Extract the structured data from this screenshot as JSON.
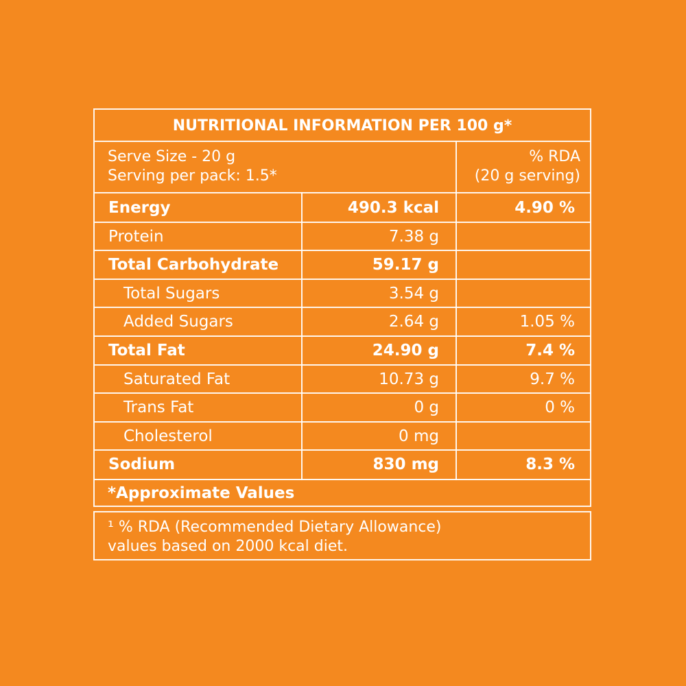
{
  "title": "NUTRITIONAL INFORMATION PER 100 g*",
  "serve_size": "Serve Size - 20 g",
  "servings_per_pack": "Serving per pack: 1.5*",
  "rda_header_line1": "% RDA",
  "rda_header_line2": "(20 g serving)",
  "rows": [
    {
      "name": "Energy",
      "amount": "490.3 kcal",
      "rda": "4.90 %",
      "bold": true,
      "indent": false
    },
    {
      "name": "Protein",
      "amount": "7.38 g",
      "rda": "",
      "bold": false,
      "indent": false
    },
    {
      "name": "Total Carbohydrate",
      "amount": "59.17 g",
      "rda": "",
      "bold": true,
      "indent": false
    },
    {
      "name": "Total Sugars",
      "amount": "3.54 g",
      "rda": "",
      "bold": false,
      "indent": true
    },
    {
      "name": "Added Sugars",
      "amount": "2.64 g",
      "rda": "1.05 %",
      "bold": false,
      "indent": true
    },
    {
      "name": "Total Fat",
      "amount": "24.90 g",
      "rda": "7.4 %",
      "bold": true,
      "indent": false
    },
    {
      "name": "Saturated Fat",
      "amount": "10.73 g",
      "rda": "9.7 %",
      "bold": false,
      "indent": true
    },
    {
      "name": "Trans Fat",
      "amount": "0 g",
      "rda": "0 %",
      "bold": false,
      "indent": true
    },
    {
      "name": "Cholesterol",
      "amount": "0 mg",
      "rda": "",
      "bold": false,
      "indent": true
    },
    {
      "name": "Sodium",
      "amount": "830 mg",
      "rda": "8.3 %",
      "bold": true,
      "indent": false
    }
  ],
  "approx_note": "*Approximate Values",
  "footnote_line1": "¹ % RDA (Recommended Dietary Allowance)",
  "footnote_line2": "values based on 2000 kcal diet.",
  "colors": {
    "background": "#f4891f",
    "text": "#ffffff"
  }
}
